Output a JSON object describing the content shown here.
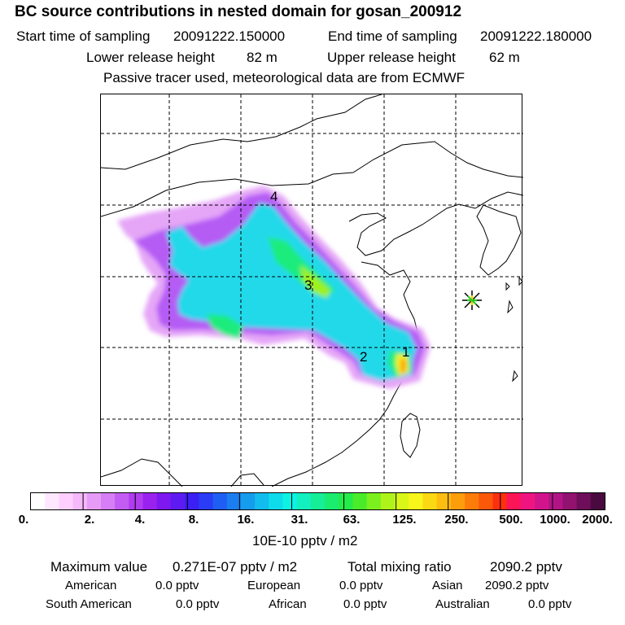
{
  "header": {
    "title": "BC  source contributions in nested domain for gosan_200912",
    "start_label": "Start time of sampling",
    "start_value": "20091222.150000",
    "end_label": "End time of sampling",
    "end_value": "20091222.180000",
    "lower_label": "Lower release height",
    "lower_value": "82 m",
    "upper_label": "Upper release height",
    "upper_value": "62 m",
    "note": "Passive tracer used, meteorological data are from ECMWF"
  },
  "map": {
    "markers": [
      "1",
      "2",
      "3",
      "4"
    ],
    "receptor": "gosan receptor star"
  },
  "colorbar": {
    "ticks": [
      "0.",
      "2.",
      "4.",
      "8.",
      "16.",
      "31.",
      "63.",
      "125.",
      "250.",
      "500.",
      "1000.",
      "2000."
    ],
    "colors": [
      "#ffffff",
      "#ffe8ff",
      "#ffd0ff",
      "#f4b8fb",
      "#e69cf7",
      "#d57ef5",
      "#c25cf2",
      "#b03cf0",
      "#9a22ee",
      "#7d18f0",
      "#5d1bf2",
      "#3c1ff4",
      "#2a3cf5",
      "#1f5ef2",
      "#1a7ef0",
      "#169ced",
      "#12bcec",
      "#0fdcea",
      "#0ef2e3",
      "#12f0c0",
      "#16ee98",
      "#1aec70",
      "#24ea4a",
      "#4aec2a",
      "#7cf01e",
      "#aef41a",
      "#d8f718",
      "#f8f51a",
      "#fbd814",
      "#fcbc10",
      "#fc9e0c",
      "#fc7c0a",
      "#fc580a",
      "#fc300e",
      "#fc1458",
      "#f01480",
      "#d2148c",
      "#b21486",
      "#921270",
      "#6e0e5a",
      "#4a0a40"
    ],
    "unit": "10E-10 pptv / m2"
  },
  "stats": {
    "max_label": "Maximum value",
    "max_value": "0.271E-07 pptv / m2",
    "total_label": "Total mixing ratio",
    "total_value": "2090.2 pptv",
    "american_label": "American",
    "american_value": "0.0 pptv",
    "european_label": "European",
    "european_value": "0.0 pptv",
    "asian_label": "Asian",
    "asian_value": "2090.2 pptv",
    "south_american_label": "South American",
    "south_american_value": "0.0 pptv",
    "african_label": "African",
    "african_value": "0.0 pptv",
    "australian_label": "Australian",
    "australian_value": "0.0 pptv"
  }
}
